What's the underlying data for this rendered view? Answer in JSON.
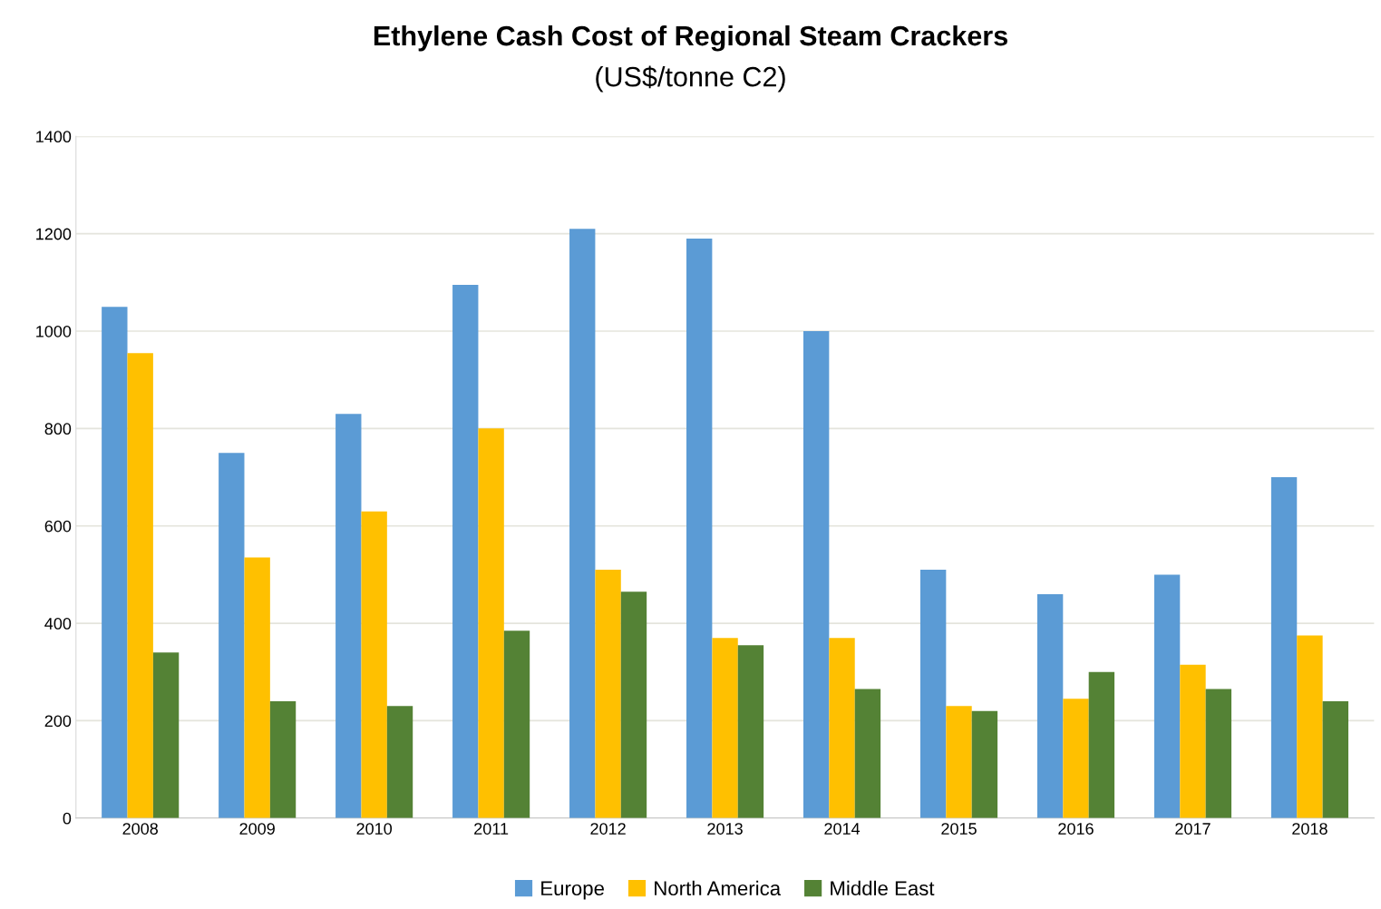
{
  "chart_data": {
    "type": "bar",
    "title": "Ethylene Cash Cost of Regional Steam Crackers",
    "subtitle": "(US$/tonne C2)",
    "categories": [
      "2008",
      "2009",
      "2010",
      "2011",
      "2012",
      "2013",
      "2014",
      "2015",
      "2016",
      "2017",
      "2018"
    ],
    "series": [
      {
        "name": "Europe",
        "color": "#5b9bd5",
        "values": [
          1050,
          750,
          830,
          1095,
          1210,
          1190,
          1000,
          510,
          460,
          500,
          700
        ]
      },
      {
        "name": "North America",
        "color": "#ffc000",
        "values": [
          955,
          535,
          630,
          800,
          510,
          370,
          370,
          230,
          245,
          315,
          375
        ]
      },
      {
        "name": "Middle East",
        "color": "#548235",
        "values": [
          340,
          240,
          230,
          385,
          465,
          355,
          265,
          220,
          300,
          265,
          240
        ]
      }
    ],
    "ylim": [
      0,
      1400
    ],
    "yticks": [
      0,
      200,
      400,
      600,
      800,
      1000,
      1200,
      1400
    ],
    "grid": "y",
    "legend": "bottom"
  }
}
